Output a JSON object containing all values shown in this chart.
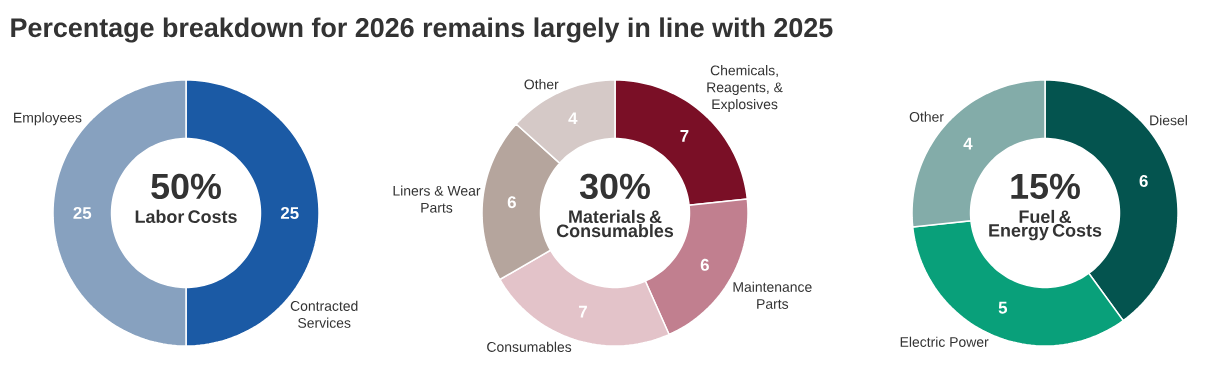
{
  "chart_data": [
    {
      "type": "donut",
      "title": "Percentage breakdown for 2026 remains largely in line with 2025",
      "categories": [
        "Contracted Services",
        "Employees"
      ],
      "values": [
        25,
        25
      ],
      "colors": [
        "#1b5aa5",
        "#87a1bf"
      ],
      "data_labels": true,
      "annotations": [
        "50%",
        "Labor Costs"
      ]
    },
    {
      "type": "donut",
      "categories": [
        "Chemicals, Reagents, & Explosives",
        "Maintenance Parts",
        "Consumables",
        "Liners & Wear Parts",
        "Other"
      ],
      "values": [
        7,
        6,
        7,
        6,
        4
      ],
      "colors": [
        "#7a0f26",
        "#c17f8f",
        "#e3c3c9",
        "#b5a59d",
        "#d5c9c7"
      ],
      "data_labels": true,
      "annotations": [
        "30%",
        "Materials & Consumables"
      ]
    },
    {
      "type": "donut",
      "categories": [
        "Diesel",
        "Electric Power",
        "Other"
      ],
      "values": [
        6,
        5,
        4
      ],
      "colors": [
        "#04544f",
        "#09a07a",
        "#83aca9"
      ],
      "data_labels": true,
      "annotations": [
        "15%",
        "Fuel & Energy Costs"
      ]
    }
  ]
}
